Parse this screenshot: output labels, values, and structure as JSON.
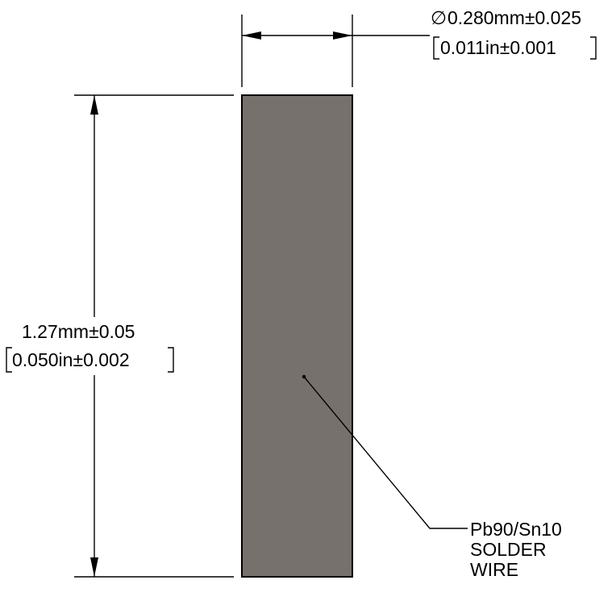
{
  "part": {
    "name": "solder-wire-body",
    "fill_color": "#77716d",
    "outline_color": "#000000"
  },
  "diameter_dimension": {
    "symbol": "∅",
    "metric": "0.280mm±0.025",
    "imperial": "0.011in±0.001"
  },
  "length_dimension": {
    "metric": "1.27mm±0.05",
    "imperial": "0.050in±0.002"
  },
  "material_callout": {
    "line1": "Pb90/Sn10",
    "line2": "SOLDER",
    "line3": "WIRE"
  }
}
